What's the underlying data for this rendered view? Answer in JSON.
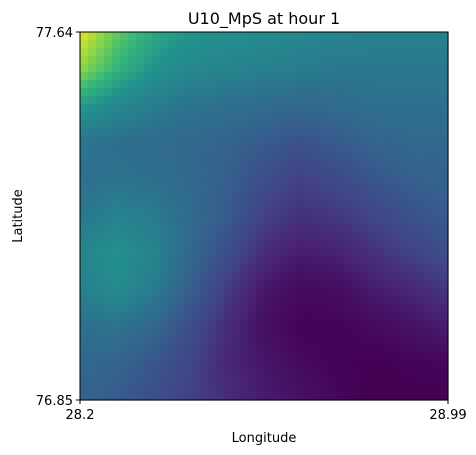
{
  "chart_data": {
    "type": "heatmap",
    "title": "U10_MpS at hour 1",
    "xlabel": "Longitude",
    "ylabel": "Latitude",
    "xlim": [
      28.2,
      28.99
    ],
    "ylim": [
      76.85,
      77.64
    ],
    "x_ticks": [
      "28.2",
      "28.99"
    ],
    "y_ticks": [
      "77.64",
      "76.85"
    ],
    "colormap": "viridis",
    "grid": false,
    "legend": "none",
    "field_description_note": "relative intensity field on 0-1 scale, rows from top (lat 77.64) to bottom (lat 76.85), columns from left (lon 28.2) to right (lon 28.99)",
    "values": [
      [
        0.98,
        0.82,
        0.7,
        0.64,
        0.62,
        0.6,
        0.58,
        0.56,
        0.55,
        0.55,
        0.54
      ],
      [
        0.88,
        0.74,
        0.64,
        0.58,
        0.56,
        0.54,
        0.52,
        0.5,
        0.5,
        0.5,
        0.5
      ],
      [
        0.66,
        0.58,
        0.52,
        0.48,
        0.46,
        0.44,
        0.42,
        0.44,
        0.46,
        0.46,
        0.46
      ],
      [
        0.48,
        0.46,
        0.44,
        0.42,
        0.4,
        0.36,
        0.32,
        0.36,
        0.4,
        0.42,
        0.42
      ],
      [
        0.46,
        0.48,
        0.46,
        0.42,
        0.38,
        0.3,
        0.24,
        0.28,
        0.34,
        0.38,
        0.4
      ],
      [
        0.5,
        0.55,
        0.52,
        0.44,
        0.36,
        0.24,
        0.18,
        0.2,
        0.26,
        0.32,
        0.36
      ],
      [
        0.56,
        0.62,
        0.56,
        0.42,
        0.3,
        0.16,
        0.1,
        0.12,
        0.18,
        0.24,
        0.3
      ],
      [
        0.54,
        0.6,
        0.52,
        0.38,
        0.22,
        0.08,
        0.03,
        0.04,
        0.1,
        0.14,
        0.2
      ],
      [
        0.46,
        0.48,
        0.42,
        0.3,
        0.16,
        0.05,
        0.01,
        0.01,
        0.03,
        0.06,
        0.1
      ],
      [
        0.42,
        0.4,
        0.34,
        0.26,
        0.14,
        0.08,
        0.03,
        0.01,
        0.0,
        0.01,
        0.02
      ],
      [
        0.4,
        0.36,
        0.3,
        0.24,
        0.16,
        0.1,
        0.06,
        0.02,
        0.0,
        0.0,
        0.0
      ]
    ]
  }
}
